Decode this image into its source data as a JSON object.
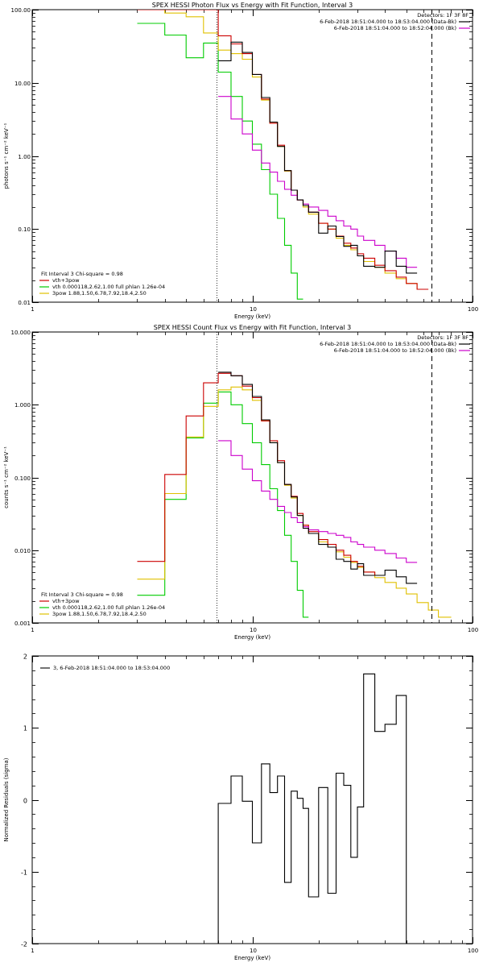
{
  "chart_data": [
    {
      "type": "line",
      "title": "SPEX HESSI Photon Flux vs Energy with Fit Function, Interval 3",
      "xlabel": "Energy (keV)",
      "ylabel": "photons s⁻¹ cm⁻² keV⁻¹",
      "xscale": "log",
      "yscale": "log",
      "xlim": [
        1,
        100
      ],
      "ylim": [
        0.01,
        100
      ],
      "x_ticks": [
        "1",
        "10",
        "100"
      ],
      "y_ticks": [
        "0.01",
        "0.10",
        "1.00",
        "10.00",
        "100.00"
      ],
      "vlines": [
        6.9,
        65
      ],
      "legend_top": {
        "position": "top-right",
        "title": "Detectors: 1F 3F 8F",
        "entries": [
          {
            "label": "6-Feb-2018 18:51:04.000 to 18:53:04.000 (Data-Bk)",
            "color": "#000000"
          },
          {
            "label": "6-Feb-2018 18:51:04.000 to 18:52:04.000 (Bk)",
            "color": "#cc00cc"
          }
        ]
      },
      "legend_bottom": {
        "position": "bottom-left",
        "title": "Fit Interval 3   Chi-square = 0.98",
        "entries": [
          {
            "label": "vth+3pow",
            "color": "#cc0000"
          },
          {
            "label": "vth 0.000118,2.62,1.00  full phlan 1.26e-04",
            "color": "#00cc00"
          },
          {
            "label": "3pow 1.88,1.50,6.78,7.92,18.4,2.50",
            "color": "#e0c000"
          }
        ]
      },
      "edges": [
        3.0,
        4.0,
        5.0,
        6.0,
        7.0,
        8.0,
        9.0,
        10.0,
        11.0,
        12.0,
        13.0,
        14.0,
        15.0,
        16.0,
        17.0,
        18.0,
        20.0,
        22.0,
        24.0,
        26.0,
        28.0,
        30.0,
        32.0,
        36.0,
        40.0,
        45.0,
        50.0,
        56.0,
        63.0,
        70.0,
        80.0
      ],
      "series": [
        {
          "name": "Data-Bk",
          "color": "#000000",
          "start_bin": 4,
          "values": [
            20,
            36,
            26,
            13,
            6.3,
            2.9,
            1.35,
            0.63,
            0.34,
            0.25,
            0.21,
            0.17,
            0.088,
            0.11,
            0.079,
            0.058,
            0.06,
            0.043,
            0.031,
            0.03,
            0.05,
            0.031,
            0.025
          ]
        },
        {
          "name": "Bk",
          "color": "#cc00cc",
          "start_bin": 4,
          "values": [
            6.5,
            3.2,
            2.0,
            1.2,
            0.8,
            0.6,
            0.45,
            0.35,
            0.29,
            0.25,
            0.22,
            0.2,
            0.18,
            0.15,
            0.13,
            0.11,
            0.1,
            0.08,
            0.07,
            0.06,
            0.05,
            0.04,
            0.03
          ]
        },
        {
          "name": "vth+3pow",
          "color": "#cc0000",
          "start_bin": 0,
          "values": [
            110,
            110,
            110,
            110,
            44,
            34,
            25,
            13,
            6.0,
            2.8,
            1.4,
            0.63,
            0.34,
            0.25,
            0.21,
            0.17,
            0.12,
            0.1,
            0.08,
            0.064,
            0.055,
            0.046,
            0.04,
            0.032,
            0.027,
            0.022,
            0.018,
            0.015
          ]
        },
        {
          "name": "vth",
          "color": "#00cc00",
          "start_bin": 0,
          "values": [
            65,
            45,
            22,
            35,
            14,
            6.5,
            3.0,
            1.45,
            0.65,
            0.3,
            0.14,
            0.06,
            0.025,
            0.011
          ]
        },
        {
          "name": "3pow",
          "color": "#e0c000",
          "start_bin": 0,
          "values": [
            110,
            90,
            80,
            48,
            28,
            25,
            21,
            12,
            5.8,
            2.8,
            1.35,
            0.62,
            0.34,
            0.25,
            0.2,
            0.16,
            0.12,
            0.1,
            0.075,
            0.06,
            0.052,
            0.043,
            0.036,
            0.03,
            0.025,
            0.021,
            0.018,
            0.015
          ]
        }
      ]
    },
    {
      "type": "line",
      "title": "SPEX HESSI Count Flux vs Energy with Fit Function, Interval 3",
      "xlabel": "Energy (keV)",
      "ylabel": "counts s⁻¹ cm⁻² keV⁻¹",
      "xscale": "log",
      "yscale": "log",
      "xlim": [
        1,
        100
      ],
      "ylim": [
        0.001,
        10
      ],
      "x_ticks": [
        "1",
        "10",
        "100"
      ],
      "y_ticks": [
        "0.001",
        "0.010",
        "0.100",
        "1.000",
        "10.000"
      ],
      "vlines": [
        6.9,
        65
      ],
      "legend_top": {
        "position": "top-right",
        "title": "Detectors: 1F 3F 8F",
        "entries": [
          {
            "label": "6-Feb-2018 18:51:04.000 to 18:53:04.000 (Data-Bk)",
            "color": "#000000"
          },
          {
            "label": "6-Feb-2018 18:51:04.000 to 18:52:04.000 (Bk)",
            "color": "#cc00cc"
          }
        ]
      },
      "legend_bottom": {
        "position": "bottom-left",
        "title": "Fit Interval 3   Chi-square = 0.98",
        "entries": [
          {
            "label": "vth+3pow",
            "color": "#cc0000"
          },
          {
            "label": "vth 0.000118,2.62,1.00  full phlan 1.26e-04",
            "color": "#00cc00"
          },
          {
            "label": "3pow 1.88,1.50,6.78,7.92,18.4,2.50",
            "color": "#e0c000"
          }
        ]
      },
      "edges": [
        3.0,
        4.0,
        5.0,
        6.0,
        7.0,
        8.0,
        9.0,
        10.0,
        11.0,
        12.0,
        13.0,
        14.0,
        15.0,
        16.0,
        17.0,
        18.0,
        20.0,
        22.0,
        24.0,
        26.0,
        28.0,
        30.0,
        32.0,
        36.0,
        40.0,
        45.0,
        50.0,
        56.0,
        63.0,
        70.0,
        80.0
      ],
      "series": [
        {
          "name": "Data-Bk",
          "color": "#000000",
          "start_bin": 4,
          "values": [
            2.8,
            2.5,
            1.9,
            1.3,
            0.62,
            0.3,
            0.16,
            0.08,
            0.054,
            0.03,
            0.02,
            0.017,
            0.012,
            0.011,
            0.0075,
            0.007,
            0.0055,
            0.0065,
            0.0045,
            0.0045,
            0.0053,
            0.0043,
            0.0035
          ]
        },
        {
          "name": "Bk",
          "color": "#cc00cc",
          "start_bin": 4,
          "values": [
            0.32,
            0.2,
            0.13,
            0.09,
            0.065,
            0.05,
            0.04,
            0.033,
            0.028,
            0.024,
            0.021,
            0.019,
            0.018,
            0.017,
            0.016,
            0.015,
            0.013,
            0.012,
            0.011,
            0.01,
            0.009,
            0.0078,
            0.0068
          ]
        },
        {
          "name": "vth+3pow",
          "color": "#cc0000",
          "start_bin": 0,
          "values": [
            0.007,
            0.11,
            0.7,
            2.0,
            2.7,
            2.5,
            1.8,
            1.25,
            0.6,
            0.32,
            0.17,
            0.08,
            0.055,
            0.032,
            0.022,
            0.018,
            0.014,
            0.012,
            0.01,
            0.0085,
            0.007,
            0.006,
            0.005,
            0.0045
          ]
        },
        {
          "name": "vth",
          "color": "#00cc00",
          "start_bin": 0,
          "values": [
            0.0024,
            0.05,
            0.35,
            1.05,
            1.5,
            1.0,
            0.55,
            0.3,
            0.15,
            0.07,
            0.035,
            0.016,
            0.007,
            0.0028,
            0.0012
          ]
        },
        {
          "name": "3pow",
          "color": "#e0c000",
          "start_bin": 0,
          "values": [
            0.004,
            0.06,
            0.36,
            0.95,
            1.6,
            1.75,
            1.6,
            1.15,
            0.6,
            0.3,
            0.16,
            0.078,
            0.052,
            0.03,
            0.022,
            0.017,
            0.013,
            0.011,
            0.0095,
            0.008,
            0.0068,
            0.0058,
            0.005,
            0.0042,
            0.0036,
            0.003,
            0.0025,
            0.0019,
            0.0015,
            0.0012
          ]
        }
      ]
    },
    {
      "type": "line",
      "xlabel": "Energy (keV)",
      "ylabel": "Normalized Residuals (sigma)",
      "xscale": "log",
      "xlim": [
        1,
        100
      ],
      "ylim": [
        -2,
        2
      ],
      "x_ticks": [
        "1",
        "10",
        "100"
      ],
      "y_ticks": [
        "-2",
        "-1",
        "0",
        "1",
        "2"
      ],
      "legend": {
        "position": "top-left",
        "entries": [
          {
            "label": "3,  6-Feb-2018 18:51:04.000 to 18:53:04.000",
            "color": "#000000"
          }
        ]
      },
      "edges": [
        7.0,
        8.0,
        9.0,
        10.0,
        11.0,
        12.0,
        13.0,
        14.0,
        15.0,
        16.0,
        17.0,
        18.0,
        20.0,
        22.0,
        24.0,
        26.0,
        28.0,
        30.0,
        32.0,
        36.0,
        40.0,
        45.0,
        50.0,
        56.0,
        63.0,
        70.0
      ],
      "series": [
        {
          "color": "#000000",
          "start_bin": 0,
          "values": [
            -0.05,
            0.33,
            -0.02,
            -0.6,
            0.5,
            0.1,
            0.33,
            -1.15,
            0.12,
            0.02,
            -0.12,
            -1.35,
            0.17,
            -1.3,
            0.37,
            0.2,
            -0.8,
            -0.1,
            1.75,
            0.95,
            1.05,
            1.45
          ]
        }
      ],
      "vline_start": 7.0,
      "vline_end": 70.0
    }
  ]
}
